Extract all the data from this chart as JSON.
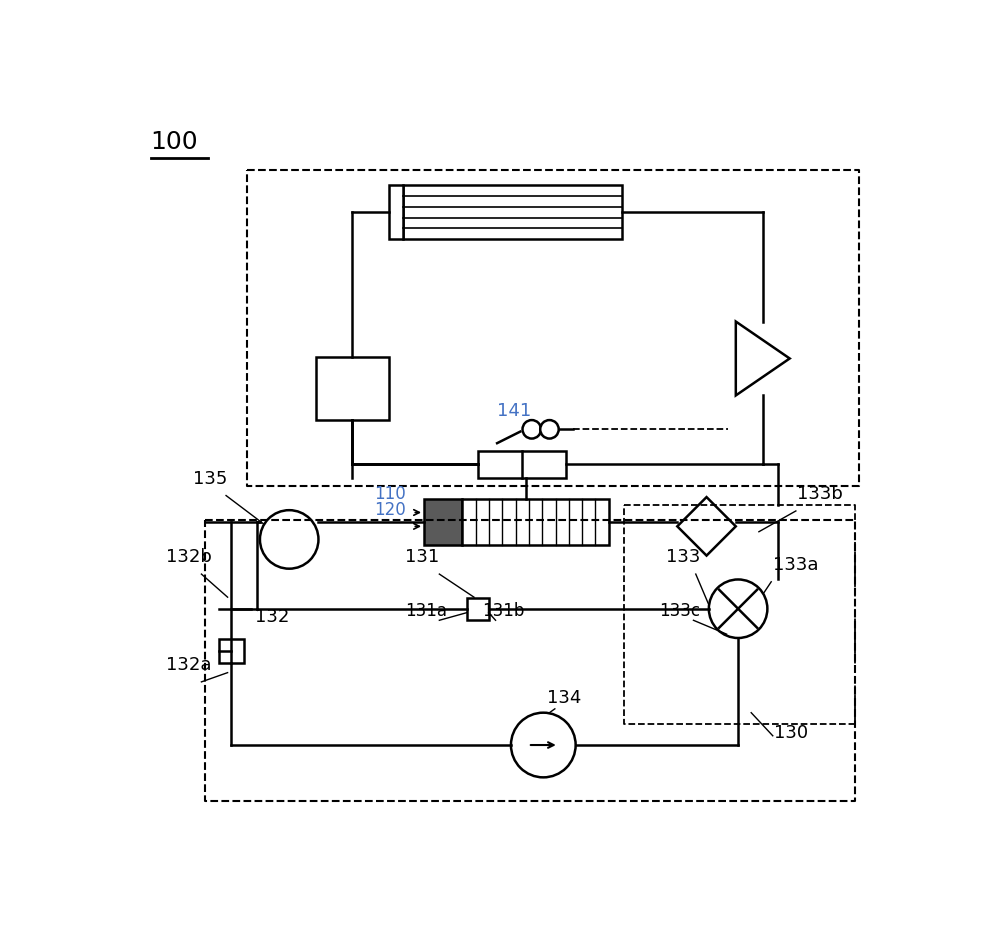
{
  "bg_color": "#ffffff",
  "line_color": "#000000",
  "label_color_blue": "#4472c4",
  "label_100": "100",
  "label_110": "110",
  "label_120": "120",
  "label_130": "130",
  "label_131": "131",
  "label_131a": "131a",
  "label_131b": "131b",
  "label_132": "132",
  "label_132a": "132a",
  "label_132b": "132b",
  "label_133": "133",
  "label_133a": "133a",
  "label_133b": "133b",
  "label_133c": "133c",
  "label_134": "134",
  "label_135": "135",
  "label_141": "141"
}
